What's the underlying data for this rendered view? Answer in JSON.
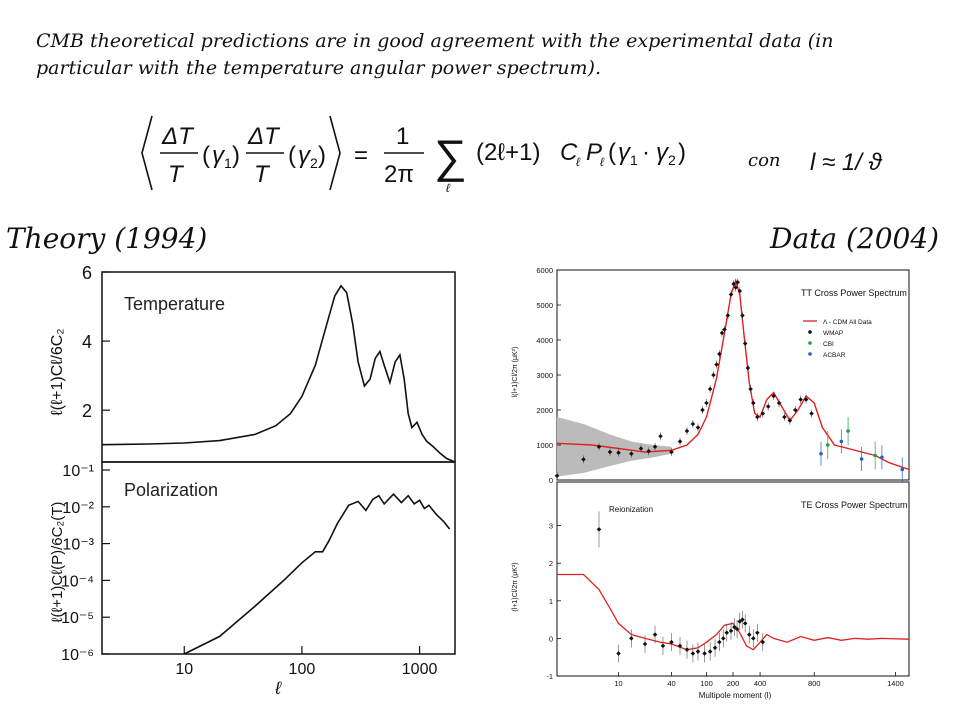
{
  "intro_text": "CMB theoretical predictions are in good agreement with the experimental data (in particular with the temperature angular power spectrum).",
  "formula": {
    "con": "con"
  },
  "headings": {
    "theory": "Theory (1994)",
    "data": "Data (2004)"
  },
  "chart_data": [
    {
      "type": "line",
      "panel": "theory-temperature",
      "title": "Temperature",
      "ylabel": "ℓ(ℓ+1)Cℓ/6C₂",
      "xscale": "log",
      "xlim": [
        2,
        2000
      ],
      "ylim": [
        0.5,
        6
      ],
      "yticks": [
        "6",
        "4",
        "2"
      ],
      "x": [
        2,
        5,
        10,
        20,
        40,
        60,
        80,
        100,
        130,
        160,
        190,
        215,
        240,
        270,
        300,
        340,
        380,
        420,
        460,
        500,
        560,
        620,
        680,
        740,
        800,
        860,
        950,
        1050,
        1150,
        1300,
        1500,
        1700,
        2000
      ],
      "y": [
        1.0,
        1.02,
        1.05,
        1.12,
        1.3,
        1.55,
        1.9,
        2.4,
        3.3,
        4.4,
        5.3,
        5.6,
        5.4,
        4.5,
        3.4,
        2.7,
        2.9,
        3.5,
        3.7,
        3.3,
        2.8,
        3.4,
        3.6,
        2.9,
        1.9,
        1.5,
        1.65,
        1.3,
        1.1,
        0.95,
        0.75,
        0.6,
        0.5
      ]
    },
    {
      "type": "line",
      "panel": "theory-polarization",
      "title": "Polarization",
      "ylabel": "ℓ(ℓ+1)Cℓ(P)/6C₂(T)",
      "xlabel": "ℓ",
      "xscale": "log",
      "yscale": "log",
      "xlim": [
        2,
        2000
      ],
      "ylim": [
        1e-06,
        0.1
      ],
      "yticks": [
        "10⁻¹",
        "10⁻²",
        "10⁻³",
        "10⁻⁴",
        "10⁻⁵",
        "10⁻⁶"
      ],
      "xticks": [
        "10",
        "100",
        "1000"
      ],
      "x": [
        10,
        20,
        40,
        70,
        100,
        130,
        150,
        170,
        200,
        250,
        300,
        350,
        400,
        450,
        500,
        600,
        700,
        800,
        900,
        1000,
        1100,
        1200,
        1400,
        1600,
        1800
      ],
      "y": [
        1e-06,
        3e-06,
        2e-05,
        0.0001,
        0.0003,
        0.0006,
        0.0006,
        0.0012,
        0.0035,
        0.011,
        0.014,
        0.008,
        0.016,
        0.02,
        0.012,
        0.022,
        0.013,
        0.02,
        0.012,
        0.015,
        0.009,
        0.011,
        0.006,
        0.004,
        0.0025
      ]
    },
    {
      "type": "scatter",
      "panel": "data-tt",
      "title": "TT Cross Power Spectrum",
      "ylabel": "l(l+1)Cl/2π (μK²)",
      "ylim": [
        0,
        6000
      ],
      "yticks": [
        "0",
        "1000",
        "2000",
        "3000",
        "4000",
        "5000",
        "6000"
      ],
      "legend": [
        "Λ - CDM All Data",
        "WMAP",
        "CBI",
        "ACBAR"
      ],
      "legend_colors": [
        "#e02020",
        "#111111",
        "#20a040",
        "#2060c0"
      ],
      "model_x": [
        2,
        5,
        10,
        20,
        40,
        60,
        80,
        100,
        130,
        160,
        190,
        220,
        250,
        280,
        320,
        360,
        400,
        450,
        500,
        560,
        620,
        680,
        740,
        800,
        860,
        950,
        1050,
        1150,
        1250,
        1350,
        1500
      ],
      "model_y": [
        1050,
        1000,
        900,
        800,
        850,
        1000,
        1300,
        1800,
        2900,
        4200,
        5300,
        5700,
        5300,
        4200,
        2800,
        1900,
        1800,
        2300,
        2500,
        2100,
        1700,
        2000,
        2400,
        2200,
        1500,
        1000,
        900,
        800,
        700,
        500,
        300
      ],
      "wmap_x": [
        2,
        4,
        6,
        8,
        10,
        14,
        18,
        22,
        26,
        30,
        40,
        50,
        60,
        70,
        80,
        90,
        100,
        110,
        120,
        130,
        140,
        150,
        160,
        175,
        190,
        205,
        220,
        235,
        250,
        270,
        290,
        310,
        330,
        350,
        380,
        420,
        460,
        500,
        540,
        580,
        620,
        660,
        700,
        740,
        780
      ],
      "wmap_y": [
        120,
        590,
        950,
        800,
        780,
        750,
        900,
        820,
        950,
        1250,
        800,
        1100,
        1400,
        1600,
        1500,
        2000,
        2200,
        2600,
        3000,
        3300,
        3600,
        4200,
        4300,
        4700,
        5300,
        5600,
        5500,
        5650,
        5400,
        4700,
        3900,
        3200,
        2600,
        2200,
        1800,
        1900,
        2100,
        2400,
        2200,
        1800,
        1700,
        2000,
        2300,
        2300,
        1900
      ],
      "cbi_x": [
        900,
        1050,
        1250
      ],
      "cbi_y": [
        1000,
        1400,
        700
      ],
      "acbar_x": [
        850,
        1000,
        1150,
        1300,
        1450
      ],
      "acbar_y": [
        750,
        1100,
        600,
        650,
        300
      ]
    },
    {
      "type": "scatter",
      "panel": "data-te",
      "title": "TE Cross Power Spectrum",
      "annotation": "Reionization",
      "ylabel": "(l+1)Cl/2π (μK²)",
      "xlabel": "Multipole moment (l)",
      "ylim": [
        -1,
        4
      ],
      "yticks": [
        "-1",
        "0",
        "1",
        "2",
        "3"
      ],
      "xticks": [
        "10",
        "40",
        "100",
        "200",
        "400",
        "800",
        "1400"
      ],
      "model_x": [
        2,
        4,
        6,
        8,
        10,
        14,
        20,
        30,
        40,
        60,
        80,
        100,
        130,
        160,
        200,
        250,
        300,
        350,
        400,
        450,
        500,
        600,
        700,
        800,
        900,
        1000,
        1100,
        1200,
        1300,
        1500
      ],
      "model_y": [
        1.7,
        1.7,
        1.3,
        0.8,
        0.4,
        0.1,
        0.0,
        -0.1,
        -0.15,
        -0.3,
        -0.25,
        -0.1,
        0.1,
        0.35,
        0.4,
        0.15,
        -0.2,
        -0.3,
        -0.1,
        0.1,
        0.0,
        -0.1,
        0.05,
        -0.05,
        0.02,
        -0.05,
        0.0,
        -0.02,
        0.0,
        -0.02
      ],
      "wmap_x": [
        6,
        10,
        14,
        20,
        26,
        32,
        40,
        50,
        60,
        70,
        80,
        95,
        110,
        125,
        140,
        155,
        170,
        190,
        210,
        230,
        250,
        270,
        290,
        320,
        350,
        380,
        420
      ],
      "wmap_y": [
        2.9,
        -0.4,
        0.0,
        -0.15,
        0.1,
        -0.2,
        -0.1,
        -0.2,
        -0.3,
        -0.4,
        -0.35,
        -0.4,
        -0.35,
        -0.25,
        -0.1,
        0.0,
        0.15,
        0.2,
        0.3,
        0.25,
        0.45,
        0.5,
        0.4,
        0.1,
        0.0,
        0.15,
        -0.1
      ]
    }
  ]
}
